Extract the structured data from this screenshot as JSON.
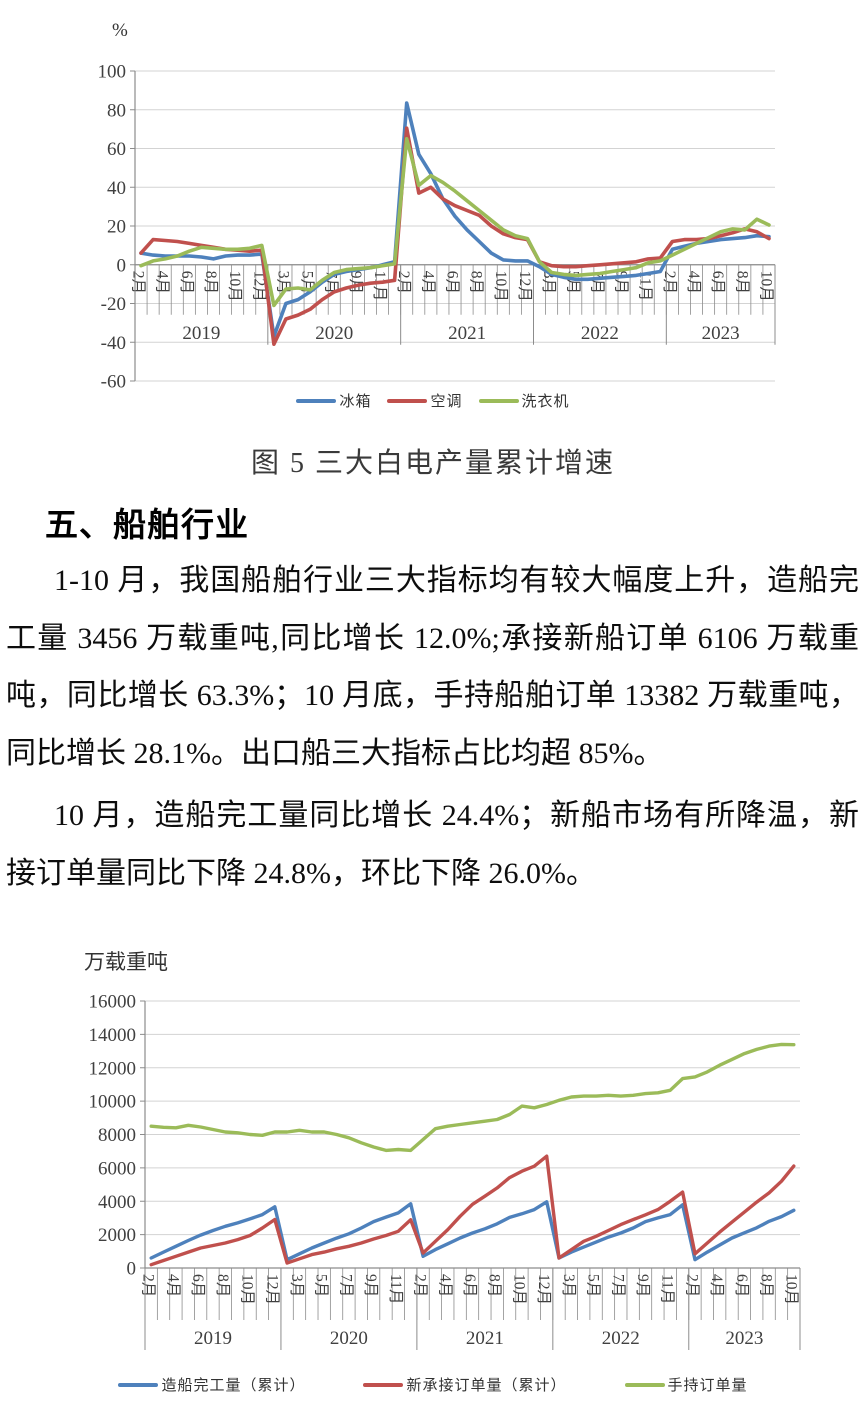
{
  "page_background": "#ffffff",
  "section": {
    "heading": "五、船舶行业",
    "paragraphs": [
      "1-10 月，我国船舶行业三大指标均有较大幅度上升，造船完工量 3456 万载重吨,同比增长 12.0%;承接新船订单 6106 万载重吨，同比增长 63.3%；10 月底，手持船舶订单 13382 万载重吨，同比增长 28.1%。出口船三大指标占比均超 85%。",
      "10 月，造船完工量同比增长 24.4%；新船市场有所降温，新接订单量同比下降 24.8%，环比下降 26.0%。"
    ]
  },
  "colors": {
    "series_blue": "#4E81BC",
    "series_red": "#C0504D",
    "series_green": "#9BBB59",
    "gridline": "#D3D3D3",
    "axis": "#8C8C8C",
    "tick_text": "#404040"
  },
  "chart_data": [
    {
      "id": "figure5-white-goods",
      "type": "line",
      "title": "图 5 三大白电产量累计增速",
      "unit": "%",
      "ylabel": "%",
      "ylim": [
        -60,
        100
      ],
      "yticks": [
        100,
        80,
        60,
        40,
        20,
        0,
        -20,
        -40,
        -60
      ],
      "grid": true,
      "legend_position": "bottom",
      "years": [
        {
          "label": "2019",
          "months": 11
        },
        {
          "label": "2020",
          "months": 11
        },
        {
          "label": "2021",
          "months": 11
        },
        {
          "label": "2022",
          "months": 11
        },
        {
          "label": "2023",
          "months": 9
        }
      ],
      "categories": [
        "2月",
        "3月",
        "4月",
        "5月",
        "6月",
        "7月",
        "8月",
        "9月",
        "10月",
        "11月",
        "12月",
        "2月",
        "3月",
        "4月",
        "5月",
        "6月",
        "7月",
        "8月",
        "9月",
        "10月",
        "11月",
        "12月",
        "2月",
        "3月",
        "4月",
        "5月",
        "6月",
        "7月",
        "8月",
        "9月",
        "10月",
        "11月",
        "12月",
        "2月",
        "3月",
        "4月",
        "5月",
        "6月",
        "7月",
        "8月",
        "9月",
        "10月",
        "11月",
        "12月",
        "2月",
        "3月",
        "4月",
        "5月",
        "6月",
        "7月",
        "8月",
        "9月",
        "10月"
      ],
      "series": [
        {
          "name": "冰箱",
          "color": "#4E81BC",
          "values": [
            6,
            5,
            4.5,
            4.5,
            4.5,
            4,
            3,
            4.5,
            5,
            5,
            5.5,
            -37,
            -20,
            -18,
            -14,
            -9,
            -5,
            -3.5,
            -2.5,
            -1.5,
            0,
            1.5,
            83.5,
            57,
            47,
            34,
            25,
            18,
            12,
            6,
            2.5,
            2,
            2,
            -1,
            -5,
            -6.5,
            -7.5,
            -7.5,
            -7,
            -6.5,
            -6,
            -5.5,
            -4.5,
            -3.5,
            8,
            9.5,
            11,
            12,
            13,
            13.5,
            14,
            15,
            14.5
          ]
        },
        {
          "name": "空调",
          "color": "#C0504D",
          "values": [
            6,
            13,
            12.5,
            12,
            11,
            10,
            9,
            8,
            7.5,
            7,
            7.5,
            -41,
            -28,
            -26,
            -23,
            -18,
            -14,
            -12,
            -10.5,
            -9.5,
            -9,
            -8,
            70.5,
            37,
            40,
            34,
            30.5,
            28,
            25.5,
            20,
            16,
            14,
            13,
            1.5,
            -0.5,
            -1,
            -1,
            -0.5,
            0,
            0.5,
            1,
            1.5,
            3,
            3.5,
            12,
            13,
            13,
            13.5,
            15,
            16.5,
            18.5,
            17,
            13.5
          ]
        },
        {
          "name": "洗衣机",
          "color": "#9BBB59",
          "values": [
            -0.5,
            2,
            3,
            4.5,
            7,
            9,
            8.5,
            8,
            8,
            8.5,
            10,
            -21,
            -12.5,
            -12,
            -13,
            -8,
            -4,
            -2.5,
            -2,
            -1.5,
            -0.5,
            0.5,
            65,
            41,
            46,
            42.5,
            38,
            33,
            28,
            23,
            18,
            15,
            13.5,
            1.5,
            -4,
            -5,
            -5.5,
            -5,
            -4.5,
            -3.5,
            -2.5,
            -1.5,
            1,
            2,
            5,
            8,
            11,
            14,
            17,
            18.5,
            18,
            23.5,
            20.5
          ]
        }
      ]
    },
    {
      "id": "figure6-shipbuilding",
      "type": "line",
      "title": "",
      "unit": "万载重吨",
      "ylabel": "万载重吨",
      "ylim": [
        0,
        16000
      ],
      "yticks": [
        16000,
        14000,
        12000,
        10000,
        8000,
        6000,
        4000,
        2000,
        0
      ],
      "grid": true,
      "legend_position": "bottom",
      "years": [
        {
          "label": "2019",
          "months": 11
        },
        {
          "label": "2020",
          "months": 11
        },
        {
          "label": "2021",
          "months": 11
        },
        {
          "label": "2022",
          "months": 11
        },
        {
          "label": "2023",
          "months": 9
        }
      ],
      "categories": [
        "2月",
        "3月",
        "4月",
        "5月",
        "6月",
        "7月",
        "8月",
        "9月",
        "10月",
        "11月",
        "12月",
        "2月",
        "3月",
        "4月",
        "5月",
        "6月",
        "7月",
        "8月",
        "9月",
        "10月",
        "11月",
        "12月",
        "2月",
        "3月",
        "4月",
        "5月",
        "6月",
        "7月",
        "8月",
        "9月",
        "10月",
        "11月",
        "12月",
        "2月",
        "3月",
        "4月",
        "5月",
        "6月",
        "7月",
        "8月",
        "9月",
        "10月",
        "11月",
        "12月",
        "2月",
        "3月",
        "4月",
        "5月",
        "6月",
        "7月",
        "8月",
        "9月",
        "10月"
      ],
      "series": [
        {
          "name": "造船完工量（累计）",
          "color": "#4E81BC",
          "values": [
            600,
            950,
            1300,
            1650,
            1970,
            2250,
            2500,
            2700,
            2940,
            3200,
            3670,
            500,
            850,
            1200,
            1500,
            1790,
            2050,
            2400,
            2780,
            3050,
            3300,
            3850,
            700,
            1100,
            1450,
            1800,
            2100,
            2350,
            2650,
            3030,
            3250,
            3500,
            3970,
            600,
            950,
            1250,
            1550,
            1850,
            2100,
            2400,
            2780,
            3000,
            3200,
            3790,
            500,
            950,
            1380,
            1800,
            2110,
            2410,
            2800,
            3080,
            3456
          ]
        },
        {
          "name": "新承接订单量（累计）",
          "color": "#C0504D",
          "values": [
            200,
            450,
            700,
            950,
            1200,
            1350,
            1500,
            1700,
            1950,
            2400,
            2907,
            300,
            550,
            800,
            950,
            1150,
            1300,
            1500,
            1740,
            1950,
            2200,
            2890,
            900,
            1600,
            2300,
            3100,
            3820,
            4300,
            4800,
            5420,
            5800,
            6100,
            6700,
            600,
            1100,
            1600,
            1900,
            2250,
            2600,
            2900,
            3190,
            3500,
            4000,
            4550,
            850,
            1500,
            2150,
            2750,
            3350,
            3950,
            4500,
            5200,
            6106
          ]
        },
        {
          "name": "手持订单量",
          "color": "#9BBB59",
          "values": [
            8500,
            8430,
            8400,
            8550,
            8450,
            8300,
            8150,
            8100,
            8000,
            7950,
            8150,
            8150,
            8250,
            8150,
            8150,
            8000,
            7800,
            7500,
            7250,
            7050,
            7100,
            7050,
            7700,
            8350,
            8500,
            8600,
            8700,
            8800,
            8900,
            9200,
            9700,
            9600,
            9800,
            10050,
            10250,
            10300,
            10300,
            10350,
            10300,
            10350,
            10450,
            10500,
            10650,
            11350,
            11450,
            11750,
            12150,
            12500,
            12850,
            13100,
            13300,
            13400,
            13382
          ]
        }
      ]
    }
  ]
}
